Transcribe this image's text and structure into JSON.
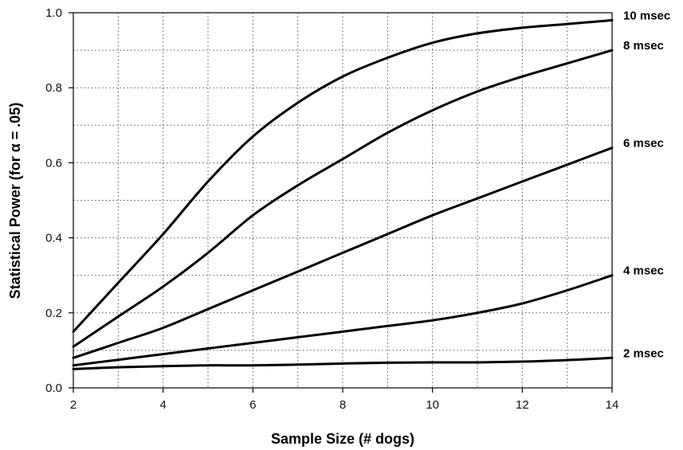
{
  "chart_data": {
    "type": "line",
    "xlabel": "Sample Size (# dogs)",
    "ylabel": "Statistical Power (for α = .05)",
    "xlim": [
      2,
      14
    ],
    "ylim": [
      0,
      1.0
    ],
    "x_ticks": [
      2,
      4,
      6,
      8,
      10,
      12,
      14
    ],
    "x_tick_labels": [
      "2",
      "4",
      "6",
      "8",
      "10",
      "12",
      "14"
    ],
    "y_ticks": [
      0,
      0.2,
      0.4,
      0.6,
      0.8,
      1.0
    ],
    "y_tick_labels": [
      "0.0",
      "0.2",
      "0.4",
      "0.6",
      "0.8",
      "1.0"
    ],
    "grid": true,
    "x": [
      2,
      3,
      4,
      5,
      6,
      7,
      8,
      9,
      10,
      11,
      12,
      13,
      14
    ],
    "series": [
      {
        "name": "10 msec",
        "values": [
          0.15,
          0.28,
          0.41,
          0.55,
          0.67,
          0.76,
          0.83,
          0.88,
          0.92,
          0.945,
          0.96,
          0.97,
          0.98
        ]
      },
      {
        "name": "8 msec",
        "values": [
          0.11,
          0.19,
          0.27,
          0.36,
          0.46,
          0.54,
          0.61,
          0.68,
          0.74,
          0.79,
          0.83,
          0.865,
          0.9
        ]
      },
      {
        "name": "6 msec",
        "values": [
          0.08,
          0.12,
          0.16,
          0.21,
          0.26,
          0.31,
          0.36,
          0.41,
          0.46,
          0.505,
          0.55,
          0.595,
          0.64
        ]
      },
      {
        "name": "4 msec",
        "values": [
          0.06,
          0.075,
          0.09,
          0.105,
          0.12,
          0.135,
          0.15,
          0.165,
          0.18,
          0.2,
          0.225,
          0.26,
          0.3
        ]
      },
      {
        "name": "2 msec",
        "values": [
          0.05,
          0.055,
          0.058,
          0.06,
          0.06,
          0.062,
          0.065,
          0.067,
          0.068,
          0.068,
          0.07,
          0.074,
          0.08
        ]
      }
    ]
  }
}
